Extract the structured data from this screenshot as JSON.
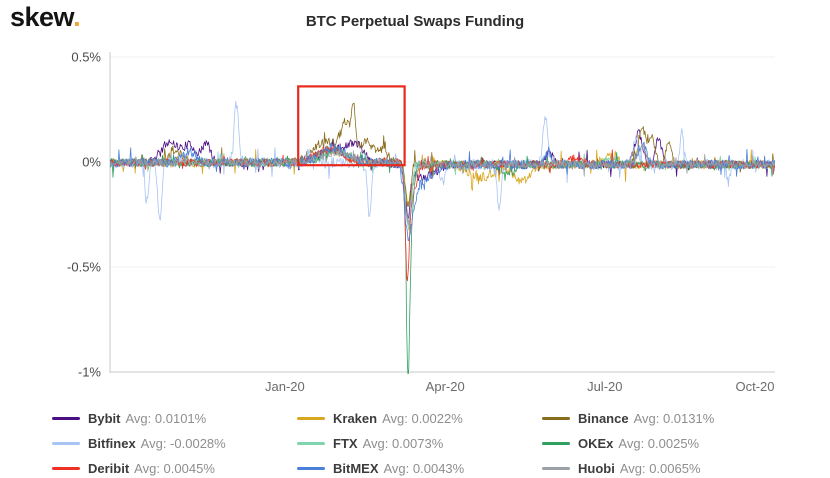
{
  "header": {
    "logo_text": "skew",
    "logo_dot": ".",
    "title": "BTC Perpetual Swaps Funding"
  },
  "chart_data": {
    "type": "line",
    "title": "BTC Perpetual Swaps Funding",
    "xlabel": "",
    "ylabel": "",
    "ylim": [
      -1,
      0.5
    ],
    "grid": false,
    "legend_position": "bottom",
    "x_ticks": [
      {
        "label": "Jan-20",
        "pos": 0.263
      },
      {
        "label": "Apr-20",
        "pos": 0.504
      },
      {
        "label": "Jul-20",
        "pos": 0.744
      },
      {
        "label": "Oct-20",
        "pos": 0.97
      }
    ],
    "y_ticks": [
      {
        "label": "0.5%",
        "value": 0.5
      },
      {
        "label": "0%",
        "value": 0
      },
      {
        "label": "-0.5%",
        "value": -0.5
      },
      {
        "label": "-1%",
        "value": -1
      }
    ],
    "axis_color": "#c9c9c9",
    "baseline_bias": {
      "before": -0.003,
      "after": -0.012,
      "split": 0.46
    },
    "annotation_box": {
      "x0": 0.283,
      "x1": 0.443,
      "y0": -0.015,
      "y1": 0.36,
      "color": "#e8291c"
    },
    "series": [
      {
        "name": "Bybit",
        "color": "#4b0e83",
        "avg_label": "Avg: 0.0101%",
        "seed": 11,
        "noise_amp": 0.02,
        "events": [
          {
            "x": 0.09,
            "y": 0.1,
            "w": 0.012
          },
          {
            "x": 0.12,
            "y": 0.08,
            "w": 0.01
          },
          {
            "x": 0.145,
            "y": 0.09,
            "w": 0.006
          },
          {
            "x": 0.34,
            "y": 0.07,
            "w": 0.025
          },
          {
            "x": 0.37,
            "y": 0.06,
            "w": 0.01
          },
          {
            "x": 0.448,
            "y": -0.22,
            "w": 0.004
          },
          {
            "x": 0.47,
            "y": -0.06,
            "w": 0.02
          },
          {
            "x": 0.66,
            "y": 0.05,
            "w": 0.006
          },
          {
            "x": 0.795,
            "y": 0.15,
            "w": 0.006
          },
          {
            "x": 0.825,
            "y": 0.12,
            "w": 0.005
          }
        ]
      },
      {
        "name": "Kraken",
        "color": "#d9a621",
        "avg_label": "Avg: 0.0022%",
        "seed": 22,
        "noise_amp": 0.022,
        "events": [
          {
            "x": 0.33,
            "y": 0.06,
            "w": 0.02
          },
          {
            "x": 0.448,
            "y": -0.16,
            "w": 0.004
          },
          {
            "x": 0.455,
            "y": -0.08,
            "w": 0.006
          },
          {
            "x": 0.56,
            "y": -0.06,
            "w": 0.02
          },
          {
            "x": 0.62,
            "y": -0.08,
            "w": 0.012
          },
          {
            "x": 0.75,
            "y": 0.04,
            "w": 0.01
          }
        ]
      },
      {
        "name": "Binance",
        "color": "#8a6d1c",
        "avg_label": "Avg: 0.0131%",
        "seed": 33,
        "noise_amp": 0.02,
        "events": [
          {
            "x": 0.1,
            "y": 0.05,
            "w": 0.01
          },
          {
            "x": 0.325,
            "y": 0.1,
            "w": 0.02
          },
          {
            "x": 0.355,
            "y": 0.16,
            "w": 0.008
          },
          {
            "x": 0.366,
            "y": 0.2,
            "w": 0.003
          },
          {
            "x": 0.385,
            "y": 0.1,
            "w": 0.01
          },
          {
            "x": 0.41,
            "y": 0.06,
            "w": 0.008
          },
          {
            "x": 0.448,
            "y": -0.2,
            "w": 0.004
          },
          {
            "x": 0.8,
            "y": 0.17,
            "w": 0.006
          },
          {
            "x": 0.815,
            "y": 0.12,
            "w": 0.005
          },
          {
            "x": 0.84,
            "y": 0.09,
            "w": 0.005
          }
        ]
      },
      {
        "name": "Bitfinex",
        "color": "#a8c4f4",
        "avg_label": "Avg: -0.0028%",
        "seed": 44,
        "noise_amp": 0.025,
        "events": [
          {
            "x": 0.055,
            "y": -0.18,
            "w": 0.003
          },
          {
            "x": 0.075,
            "y": -0.28,
            "w": 0.003
          },
          {
            "x": 0.19,
            "y": 0.28,
            "w": 0.0035
          },
          {
            "x": 0.3,
            "y": 0.05,
            "w": 0.004
          },
          {
            "x": 0.39,
            "y": -0.24,
            "w": 0.003
          },
          {
            "x": 0.448,
            "y": -0.3,
            "w": 0.005
          },
          {
            "x": 0.5,
            "y": -0.1,
            "w": 0.003
          },
          {
            "x": 0.585,
            "y": -0.2,
            "w": 0.003
          },
          {
            "x": 0.655,
            "y": 0.22,
            "w": 0.004
          },
          {
            "x": 0.79,
            "y": 0.12,
            "w": 0.004
          },
          {
            "x": 0.86,
            "y": 0.15,
            "w": 0.003
          },
          {
            "x": 0.93,
            "y": -0.08,
            "w": 0.003
          }
        ]
      },
      {
        "name": "FTX",
        "color": "#7fd4ad",
        "avg_label": "Avg: 0.0073%",
        "seed": 55,
        "noise_amp": 0.015,
        "events": [
          {
            "x": 0.34,
            "y": 0.05,
            "w": 0.02
          },
          {
            "x": 0.448,
            "y": -0.25,
            "w": 0.004
          },
          {
            "x": 0.452,
            "y": -0.1,
            "w": 0.004
          },
          {
            "x": 0.75,
            "y": 0.03,
            "w": 0.01
          }
        ]
      },
      {
        "name": "OKEx",
        "color": "#2fa060",
        "avg_label": "Avg: 0.0025%",
        "seed": 66,
        "noise_amp": 0.018,
        "events": [
          {
            "x": 0.34,
            "y": 0.06,
            "w": 0.02
          },
          {
            "x": 0.448,
            "y": -0.85,
            "w": 0.0025
          },
          {
            "x": 0.452,
            "y": -0.3,
            "w": 0.004
          },
          {
            "x": 0.6,
            "y": -0.04,
            "w": 0.01
          }
        ]
      },
      {
        "name": "Deribit",
        "color": "#ee3124",
        "avg_label": "Avg: 0.0045%",
        "seed": 77,
        "noise_amp": 0.018,
        "events": [
          {
            "x": 0.33,
            "y": 0.06,
            "w": 0.02
          },
          {
            "x": 0.447,
            "y": -0.5,
            "w": 0.003
          },
          {
            "x": 0.455,
            "y": -0.15,
            "w": 0.006
          },
          {
            "x": 0.7,
            "y": 0.03,
            "w": 0.01
          }
        ]
      },
      {
        "name": "BitMEX",
        "color": "#4a80d9",
        "avg_label": "Avg: 0.0043%",
        "seed": 88,
        "noise_amp": 0.022,
        "events": [
          {
            "x": 0.12,
            "y": 0.05,
            "w": 0.01
          },
          {
            "x": 0.335,
            "y": 0.07,
            "w": 0.02
          },
          {
            "x": 0.448,
            "y": -0.32,
            "w": 0.005
          },
          {
            "x": 0.458,
            "y": -0.12,
            "w": 0.004
          },
          {
            "x": 0.47,
            "y": -0.08,
            "w": 0.015
          },
          {
            "x": 0.66,
            "y": 0.06,
            "w": 0.005
          },
          {
            "x": 0.8,
            "y": 0.1,
            "w": 0.006
          }
        ]
      },
      {
        "name": "Huobi",
        "color": "#9aa0a6",
        "avg_label": "Avg: 0.0065%",
        "seed": 99,
        "noise_amp": 0.018,
        "events": [
          {
            "x": 0.34,
            "y": 0.05,
            "w": 0.02
          },
          {
            "x": 0.448,
            "y": -0.28,
            "w": 0.004
          },
          {
            "x": 0.456,
            "y": -0.1,
            "w": 0.004
          },
          {
            "x": 0.8,
            "y": 0.08,
            "w": 0.006
          }
        ]
      }
    ]
  }
}
